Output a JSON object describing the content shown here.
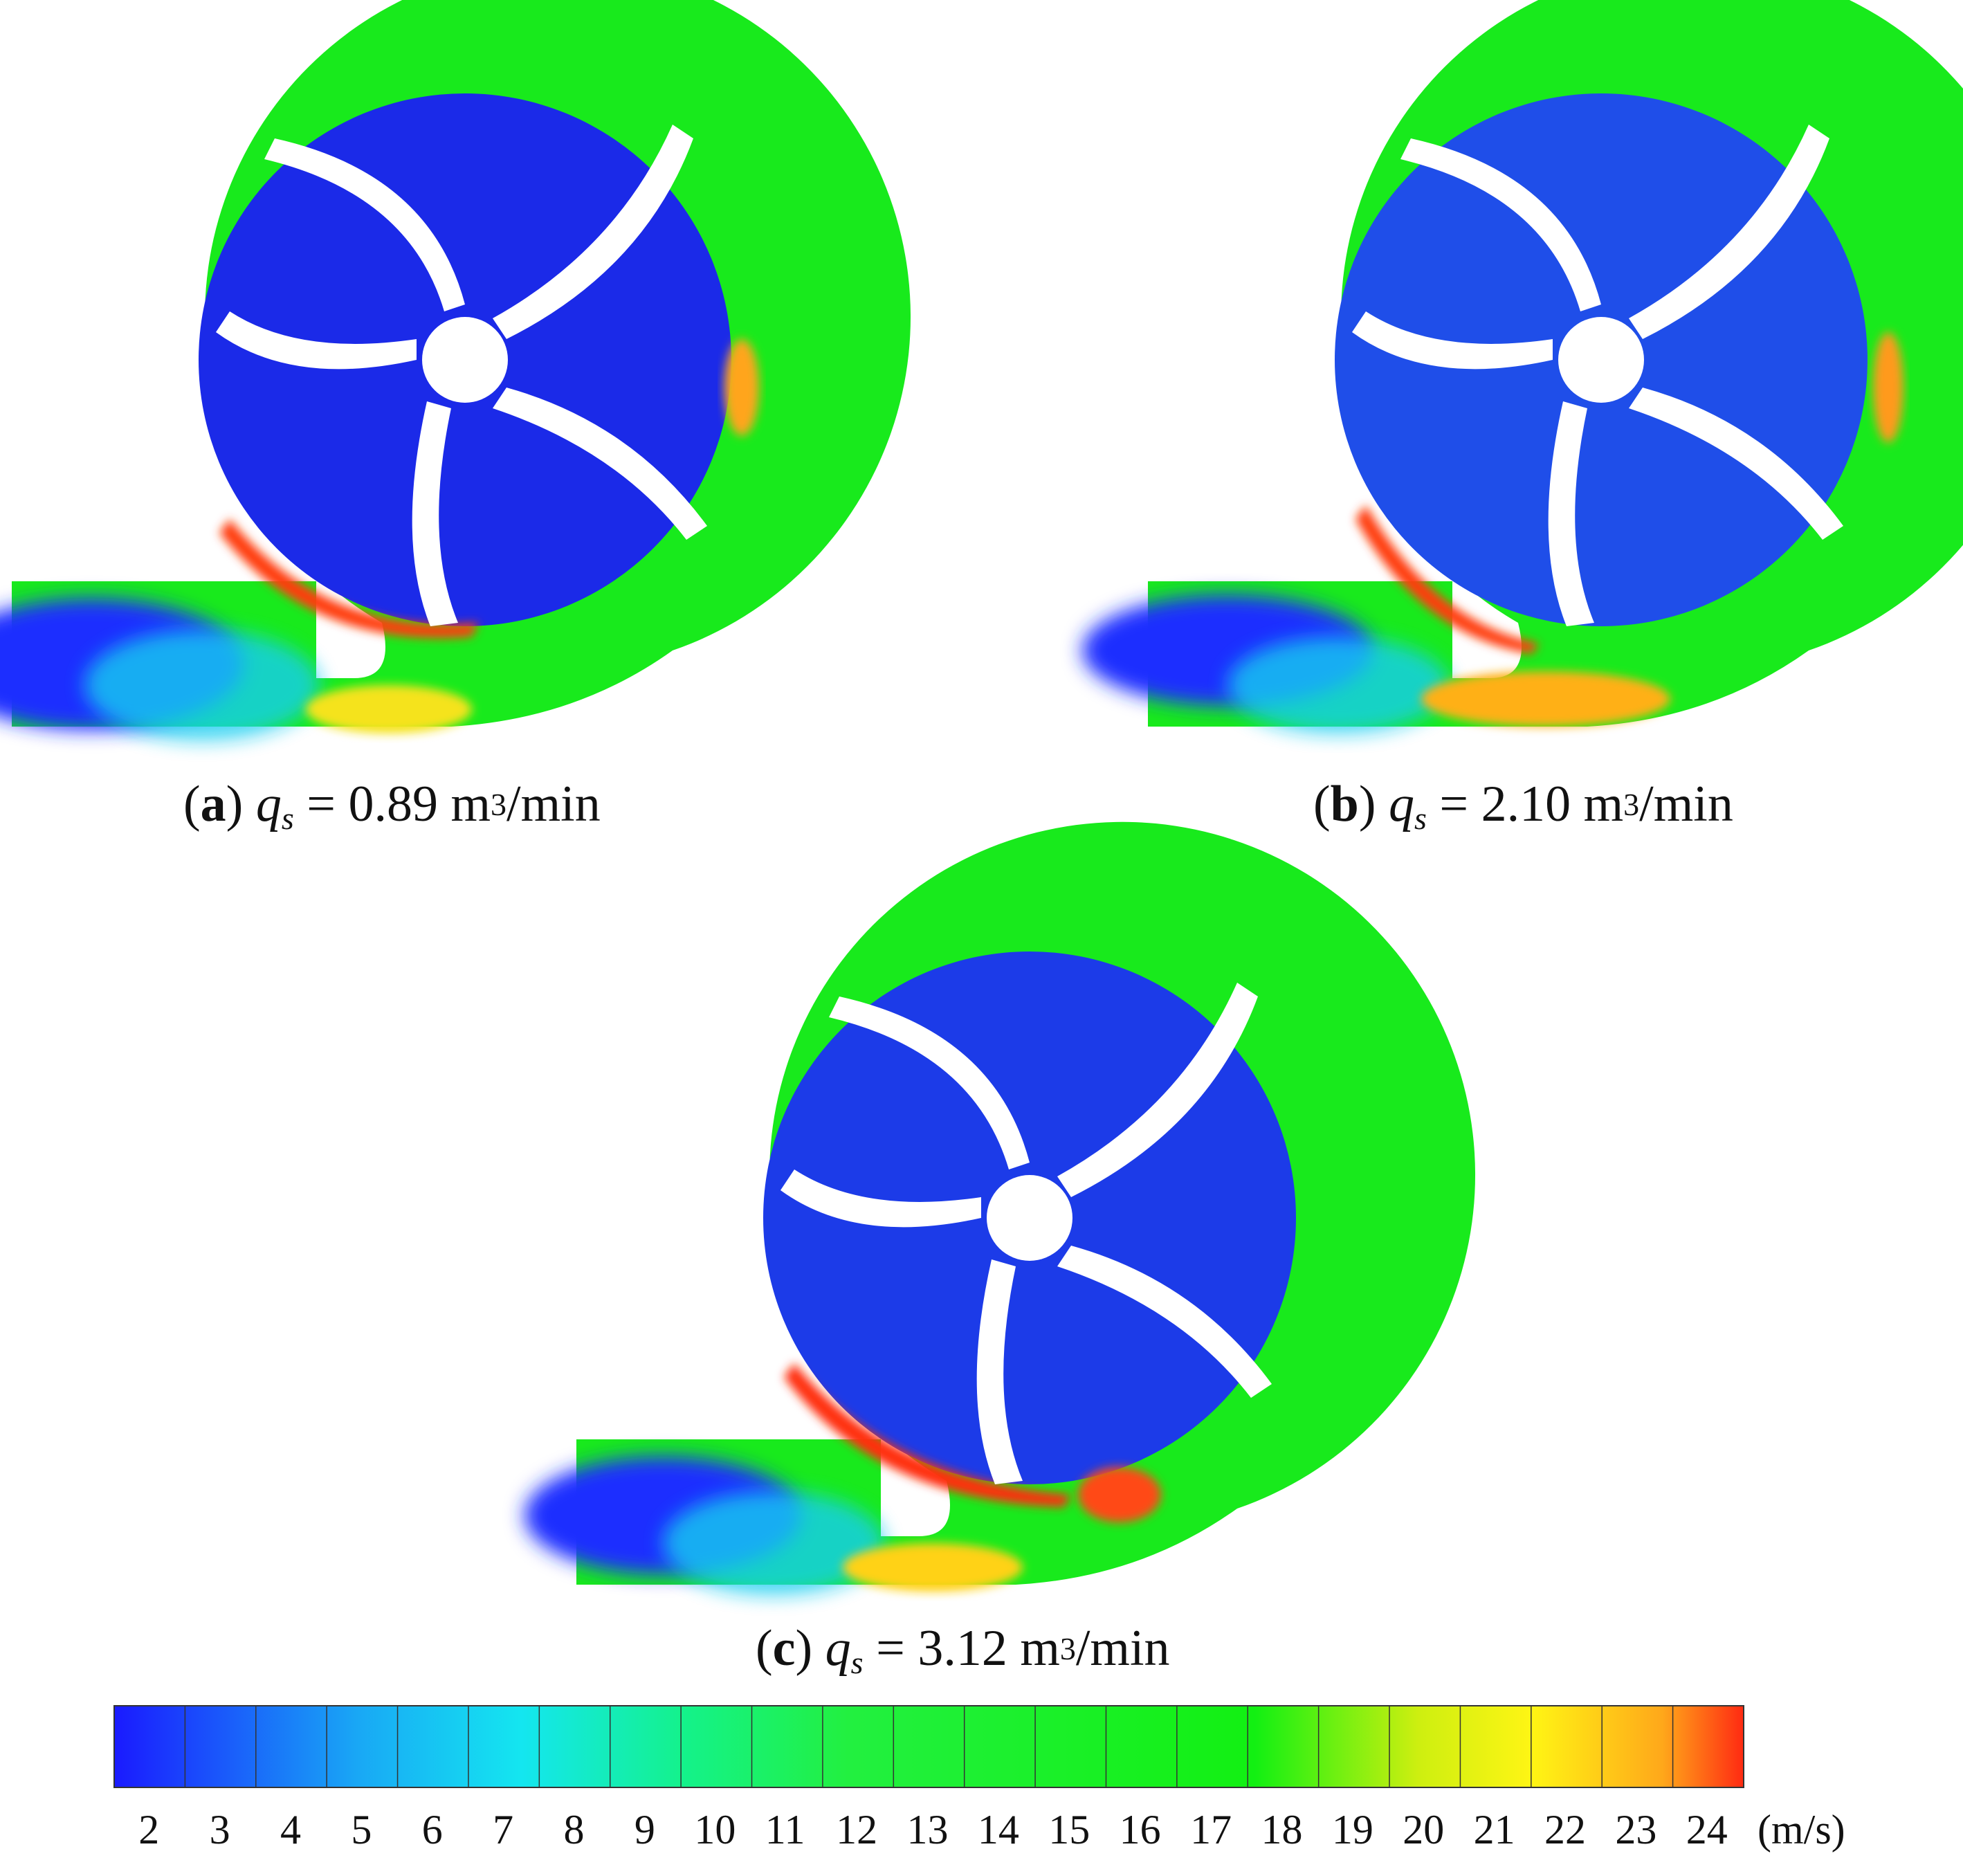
{
  "panels": [
    {
      "letter": "a",
      "var": "q",
      "sub": "s",
      "eq": " = ",
      "value": "0.89",
      "unit_base": "m",
      "unit_sup": "3",
      "unit_tail": "/min"
    },
    {
      "letter": "b",
      "var": "q",
      "sub": "s",
      "eq": " = ",
      "value": "2.10",
      "unit_base": "m",
      "unit_sup": "3",
      "unit_tail": "/min"
    },
    {
      "letter": "c",
      "var": "q",
      "sub": "s",
      "eq": " = ",
      "value": "3.12",
      "unit_base": "m",
      "unit_sup": "3",
      "unit_tail": "/min"
    }
  ],
  "colorbar": {
    "ticks": [
      "2",
      "3",
      "4",
      "5",
      "6",
      "7",
      "8",
      "9",
      "10",
      "11",
      "12",
      "13",
      "14",
      "15",
      "16",
      "17",
      "18",
      "19",
      "20",
      "21",
      "22",
      "23",
      "24"
    ],
    "unit": "(m/s)",
    "min": 1.5,
    "max": 24.5,
    "colors": [
      "#1a1aff",
      "#1560f0",
      "#19a8f5",
      "#14e6f0",
      "#12f0c8",
      "#14f28a",
      "#22f040",
      "#12f012",
      "#35ef10",
      "#7def10",
      "#cdef10",
      "#fff514",
      "#ffd319",
      "#ffa81a",
      "#ff2a12"
    ]
  }
}
